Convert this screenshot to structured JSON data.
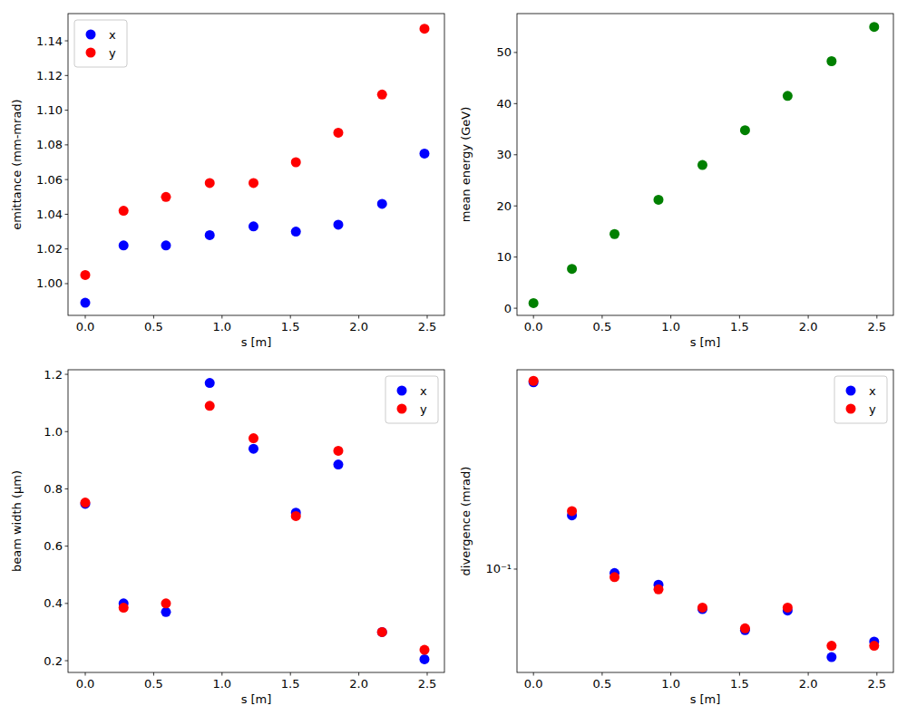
{
  "chart_data": [
    {
      "type": "scatter",
      "x_label": "s [m]",
      "y_label": "emittance (mm-mrad)",
      "legend": "upper-left",
      "x": [
        0.0,
        0.28,
        0.59,
        0.91,
        1.23,
        1.54,
        1.85,
        2.17,
        2.48
      ],
      "series": [
        {
          "name": "x",
          "color": "#0000ff",
          "values": [
            0.989,
            1.022,
            1.022,
            1.028,
            1.033,
            1.03,
            1.034,
            1.046,
            1.075
          ]
        },
        {
          "name": "y",
          "color": "#ff0000",
          "values": [
            1.005,
            1.042,
            1.05,
            1.058,
            1.058,
            1.07,
            1.087,
            1.109,
            1.147
          ]
        }
      ],
      "xlim": [
        -0.126,
        2.626
      ],
      "ylim": [
        0.9817,
        1.1557
      ],
      "xticks": [
        {
          "value": 0,
          "label": "0.0"
        },
        {
          "value": 0.5,
          "label": "0.5"
        },
        {
          "value": 1,
          "label": "1.0"
        },
        {
          "value": 1.5,
          "label": "1.5"
        },
        {
          "value": 2,
          "label": "2.0"
        },
        {
          "value": 2.5,
          "label": "2.5"
        }
      ],
      "yticks": [
        {
          "value": 1,
          "label": "1.00"
        },
        {
          "value": 1.02,
          "label": "1.02"
        },
        {
          "value": 1.04,
          "label": "1.04"
        },
        {
          "value": 1.06,
          "label": "1.06"
        },
        {
          "value": 1.08,
          "label": "1.08"
        },
        {
          "value": 1.1,
          "label": "1.10"
        },
        {
          "value": 1.12,
          "label": "1.12"
        },
        {
          "value": 1.14,
          "label": "1.14"
        }
      ]
    },
    {
      "type": "scatter",
      "x_label": "s [m]",
      "y_label": "mean energy (GeV)",
      "color": "#008000",
      "x": [
        0.0,
        0.28,
        0.59,
        0.91,
        1.23,
        1.54,
        1.85,
        2.17,
        2.48
      ],
      "values": [
        1.0,
        7.7,
        14.5,
        21.2,
        28.0,
        34.8,
        41.5,
        48.3,
        55.0
      ],
      "xlim": [
        -0.12,
        2.62
      ],
      "ylim": [
        -1.4,
        57.6
      ],
      "xticks": [
        {
          "value": 0,
          "label": "0.0"
        },
        {
          "value": 0.5,
          "label": "0.5"
        },
        {
          "value": 1,
          "label": "1.0"
        },
        {
          "value": 1.5,
          "label": "1.5"
        },
        {
          "value": 2,
          "label": "2.0"
        },
        {
          "value": 2.5,
          "label": "2.5"
        }
      ],
      "yticks": [
        0,
        10,
        20,
        30,
        40,
        50
      ]
    },
    {
      "type": "scatter",
      "x_label": "s [m]",
      "y_label": "beam width (μm)",
      "legend": "upper-right",
      "x": [
        0.0,
        0.28,
        0.59,
        0.91,
        1.23,
        1.54,
        1.85,
        2.17,
        2.48
      ],
      "series": [
        {
          "name": "x",
          "color": "#0000ff",
          "values": [
            0.748,
            0.4,
            0.37,
            1.17,
            0.94,
            0.717,
            0.885,
            0.3,
            0.205
          ]
        },
        {
          "name": "y",
          "color": "#ff0000",
          "values": [
            0.752,
            0.385,
            0.4,
            1.09,
            0.977,
            0.705,
            0.933,
            0.3,
            0.238
          ]
        }
      ],
      "xlim": [
        -0.126,
        2.626
      ],
      "ylim": [
        0.159,
        1.216
      ],
      "xticks": [
        {
          "value": 0,
          "label": "0.0"
        },
        {
          "value": 0.5,
          "label": "0.5"
        },
        {
          "value": 1,
          "label": "1.0"
        },
        {
          "value": 1.5,
          "label": "1.5"
        },
        {
          "value": 2,
          "label": "2.0"
        },
        {
          "value": 2.5,
          "label": "2.5"
        }
      ],
      "yticks": [
        {
          "value": 0.2,
          "label": "0.2"
        },
        {
          "value": 0.4,
          "label": "0.4"
        },
        {
          "value": 0.6,
          "label": "0.6"
        },
        {
          "value": 0.8,
          "label": "0.8"
        },
        {
          "value": 1,
          "label": "1.0"
        },
        {
          "value": 1.2,
          "label": "1.2"
        }
      ]
    },
    {
      "type": "scatter",
      "x_label": "s [m]",
      "y_label": "divergence (mrad)",
      "legend": "upper-right",
      "log": "y",
      "x": [
        0.0,
        0.28,
        0.59,
        0.91,
        1.23,
        1.54,
        1.85,
        2.17,
        2.48
      ],
      "series": [
        {
          "name": "x",
          "color": "#0000ff",
          "values": [
            0.7,
            0.175,
            0.096,
            0.085,
            0.066,
            0.053,
            0.065,
            0.04,
            0.047
          ]
        },
        {
          "name": "y",
          "color": "#ff0000",
          "values": [
            0.71,
            0.183,
            0.092,
            0.081,
            0.067,
            0.054,
            0.067,
            0.045,
            0.045
          ]
        }
      ],
      "xlim": [
        -0.12,
        2.62
      ],
      "ylim": [
        0.0341,
        0.797
      ],
      "xticks": [
        {
          "value": 0,
          "label": "0.0"
        },
        {
          "value": 0.5,
          "label": "0.5"
        },
        {
          "value": 1,
          "label": "1.0"
        },
        {
          "value": 1.5,
          "label": "1.5"
        },
        {
          "value": 2,
          "label": "2.0"
        },
        {
          "value": 2.5,
          "label": "2.5"
        }
      ],
      "yticks": [
        {
          "value": 0.1,
          "label": "10⁻¹"
        }
      ]
    }
  ]
}
